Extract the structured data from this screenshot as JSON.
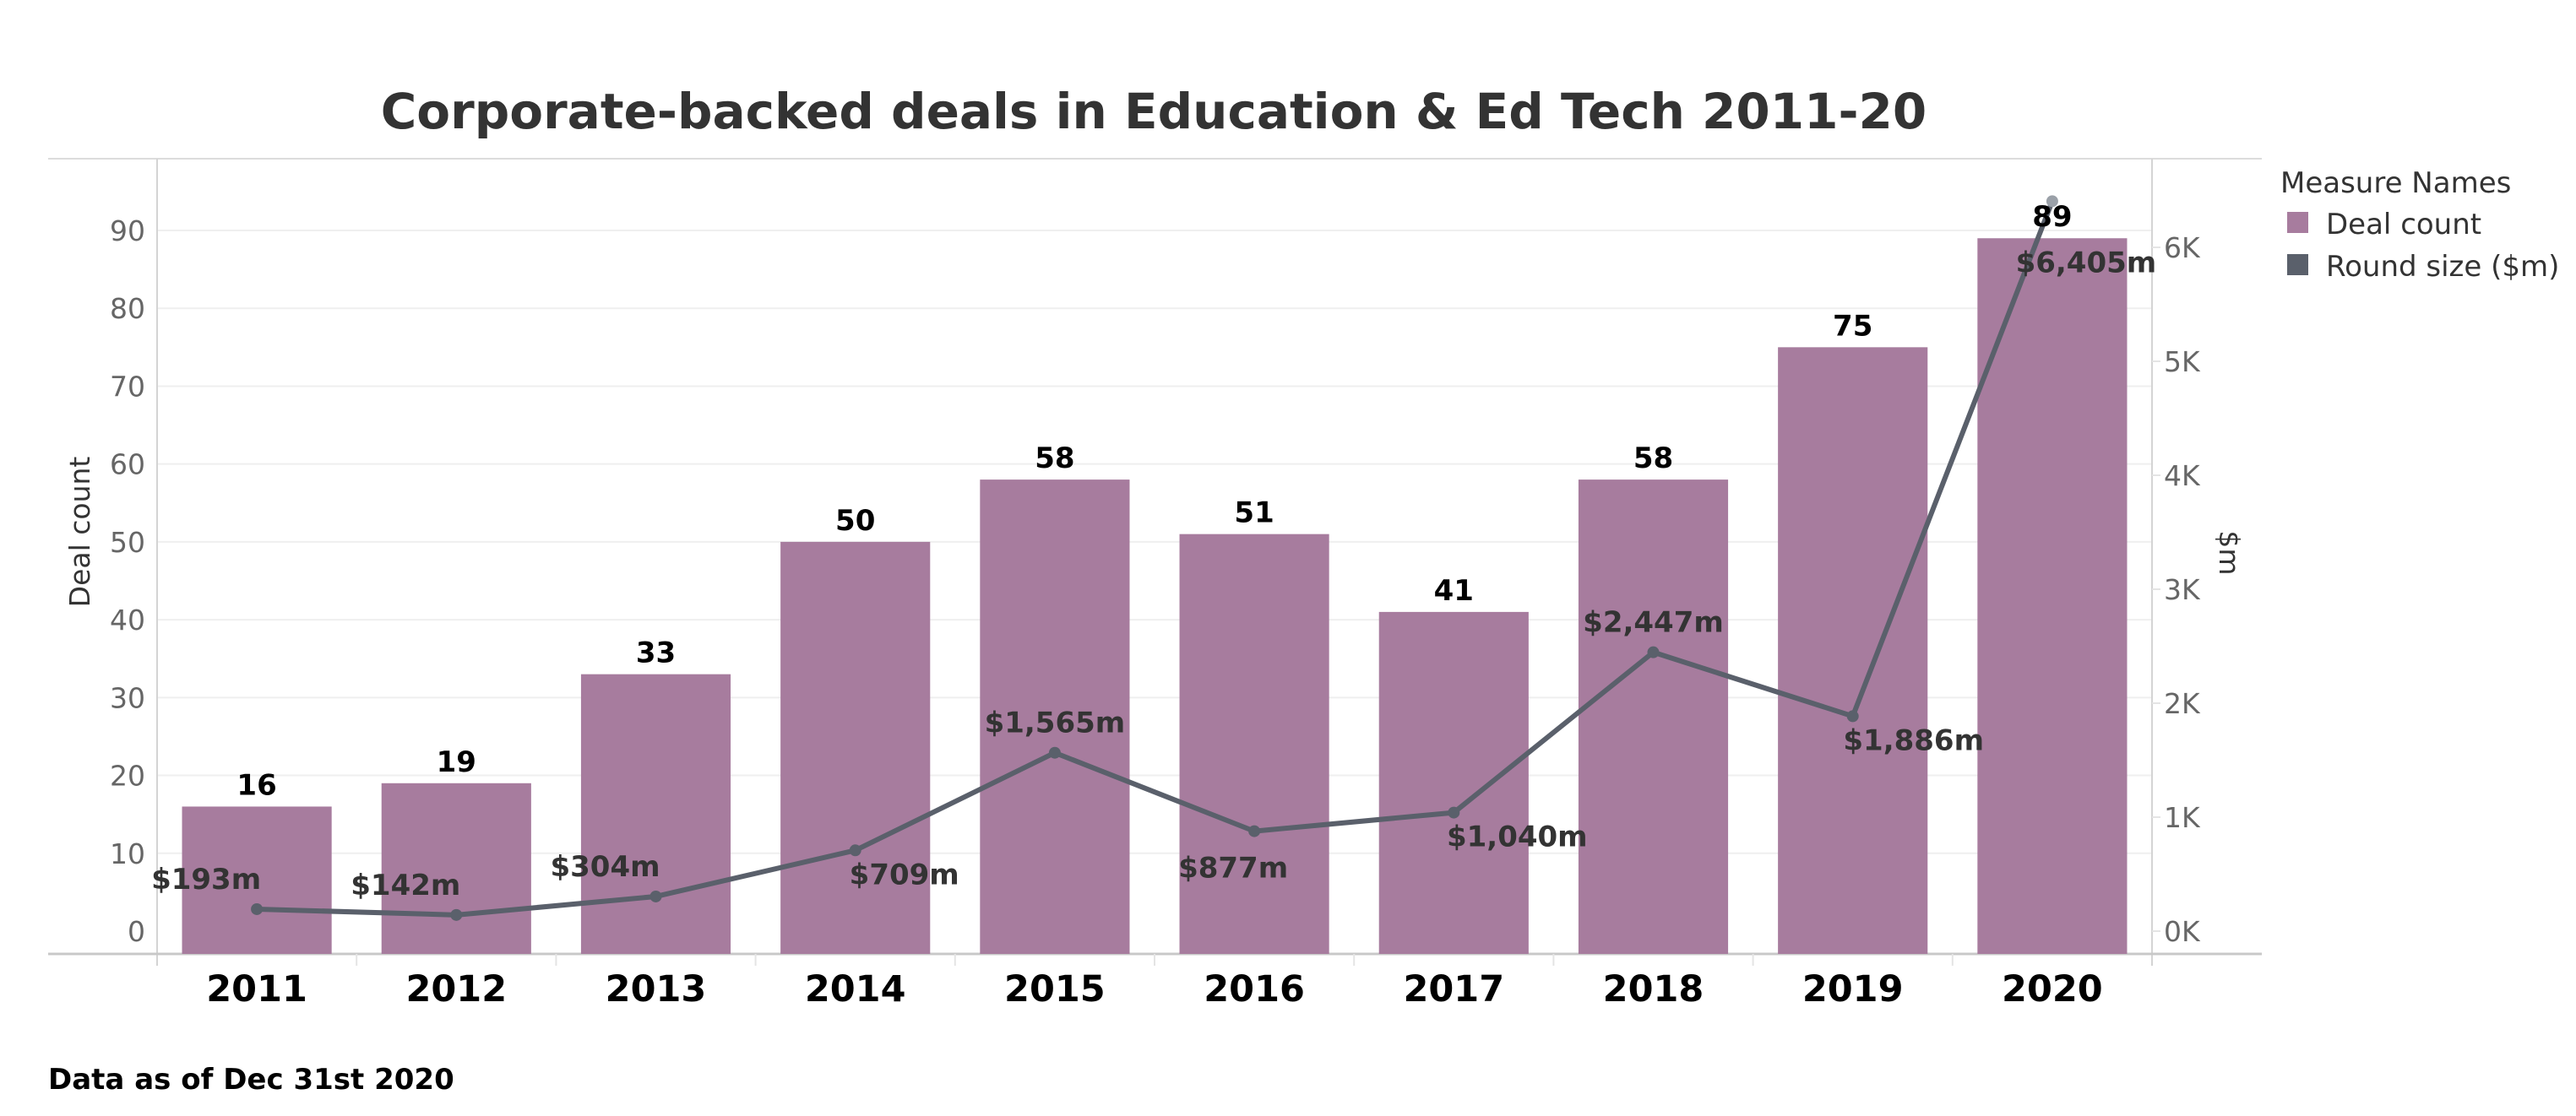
{
  "chart_data": {
    "type": "bar",
    "title": "Corporate-backed deals in Education & Ed Tech 2011-20",
    "categories": [
      "2011",
      "2012",
      "2013",
      "2014",
      "2015",
      "2016",
      "2017",
      "2018",
      "2019",
      "2020"
    ],
    "series": [
      {
        "name": "Deal count",
        "type": "bar",
        "axis": "left",
        "color": "#a77c9e",
        "values": [
          16,
          19,
          33,
          50,
          58,
          51,
          41,
          58,
          75,
          89
        ],
        "labels": [
          "16",
          "19",
          "33",
          "50",
          "58",
          "51",
          "41",
          "58",
          "75",
          "89"
        ]
      },
      {
        "name": "Round size ($m)",
        "type": "line",
        "axis": "right",
        "color": "#5a606b",
        "values": [
          193,
          142,
          304,
          709,
          1565,
          877,
          1040,
          2447,
          1886,
          6405
        ],
        "labels": [
          "$193m",
          "$142m",
          "$304m",
          "$709m",
          "$1,565m",
          "$877m",
          "$1,040m",
          "$2,447m",
          "$1,886m",
          "$6,405m"
        ]
      }
    ],
    "ylabel": "Deal count",
    "ylim": [
      0,
      97
    ],
    "yticks": [
      "0",
      "10",
      "20",
      "30",
      "40",
      "50",
      "60",
      "70",
      "80",
      "90"
    ],
    "y2label": "$m",
    "y2lim": [
      0,
      6600
    ],
    "y2ticks": [
      "0K",
      "1K",
      "2K",
      "3K",
      "4K",
      "5K",
      "6K"
    ],
    "xlabel": "",
    "grid": true,
    "legend": {
      "title": "Measure Names",
      "position": "top-right",
      "items": [
        "Deal count",
        "Round size ($m)"
      ]
    }
  },
  "footnote": "Data as of Dec 31st 2020"
}
